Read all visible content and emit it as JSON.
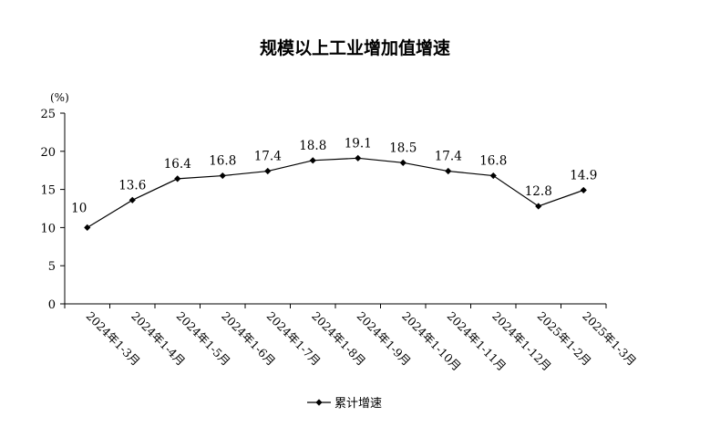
{
  "chart_data": {
    "type": "line",
    "title": "规模以上工业增加值增速",
    "y_unit": "(%)",
    "ylim": [
      0,
      25
    ],
    "yticks": [
      0,
      5,
      10,
      15,
      20,
      25
    ],
    "categories": [
      "2024年1-3月",
      "2024年1-4月",
      "2024年1-5月",
      "2024年1-6月",
      "2024年1-7月",
      "2024年1-8月",
      "2024年1-9月",
      "2024年1-10月",
      "2024年1-11月",
      "2024年1-12月",
      "2025年1-2月",
      "2025年1-3月"
    ],
    "series": [
      {
        "name": "累计增速",
        "values": [
          10,
          13.6,
          16.4,
          16.8,
          17.4,
          18.8,
          19.1,
          18.5,
          17.4,
          16.8,
          12.8,
          14.9
        ],
        "labels": [
          "10",
          "13.6",
          "16.4",
          "16.8",
          "17.4",
          "18.8",
          "19.1",
          "18.5",
          "17.4",
          "16.8",
          "12.8",
          "14.9"
        ]
      }
    ],
    "grid": false,
    "legend_position": "bottom-center",
    "line_color": "#000000",
    "marker": "diamond"
  }
}
